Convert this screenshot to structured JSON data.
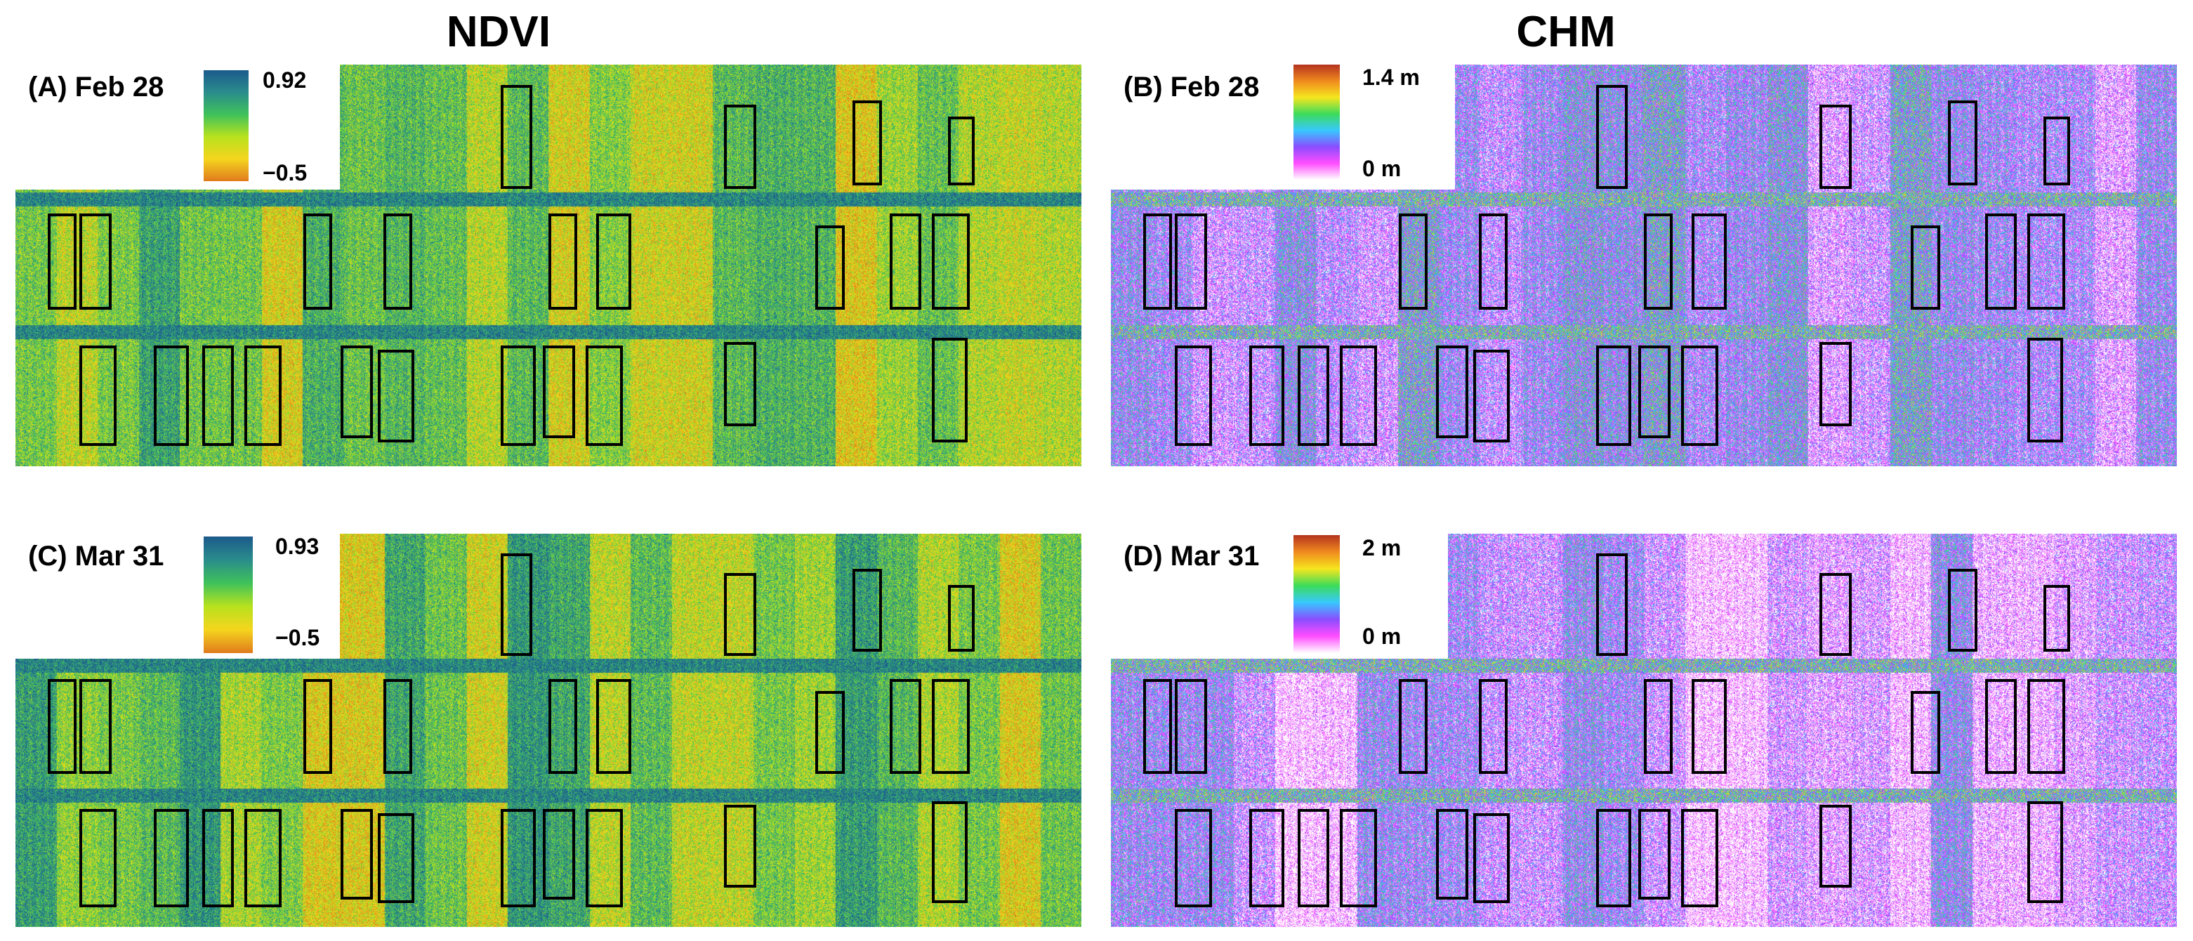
{
  "headers": {
    "ndvi": "NDVI",
    "chm": "CHM"
  },
  "panels": [
    {
      "key": "A",
      "label": "(A) Feb 28",
      "colormap": "ndvi",
      "scale_max": "0.92",
      "scale_min": "−0.5"
    },
    {
      "key": "B",
      "label": "(B) Feb 28",
      "colormap": "chm",
      "scale_max": "1.4 m",
      "scale_min": "0 m"
    },
    {
      "key": "C",
      "label": "(C) Mar 31",
      "colormap": "ndvi",
      "scale_max": "0.93",
      "scale_min": "−0.5"
    },
    {
      "key": "D",
      "label": "(D) Mar 31",
      "colormap": "chm",
      "scale_max": "2 m",
      "scale_min": "0 m"
    }
  ],
  "colormaps": {
    "ndvi": [
      "#e07a1c",
      "#f5d51e",
      "#b8e21e",
      "#3fc25a",
      "#2a8c8c",
      "#1c5a8c"
    ],
    "chm": [
      "#ffffff",
      "#ff4dff",
      "#8a4dff",
      "#38c8ff",
      "#3cdc5a",
      "#f5e61e",
      "#f08a1e",
      "#b4321e"
    ]
  }
}
